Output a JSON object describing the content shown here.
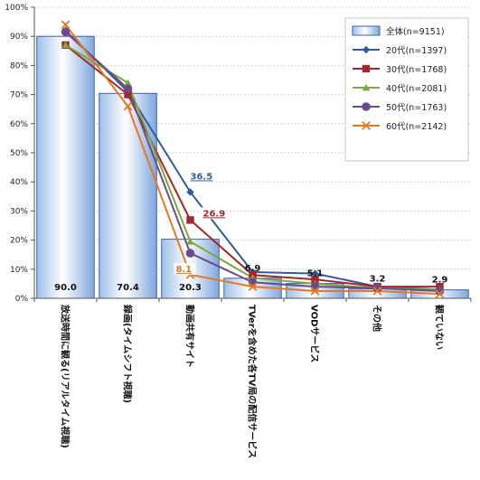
{
  "chart_data": {
    "type": "bar",
    "categories": [
      "放送時間に観る(リアルタイム視聴)",
      "録画(タイムシフト視聴)",
      "動画共有サイト",
      "TVerを含めた各TV局の配信サービス",
      "VODサービス",
      "その他",
      "観ていない"
    ],
    "y_ticks": [
      "0%",
      "10%",
      "20%",
      "30%",
      "40%",
      "50%",
      "60%",
      "70%",
      "80%",
      "90%",
      "100%"
    ],
    "ylim": [
      0,
      100
    ],
    "grid": true,
    "legend_position": "top-right",
    "bar_series": {
      "name": "全体(n=9151)",
      "values": [
        90.0,
        70.4,
        20.3,
        6.9,
        5.1,
        3.2,
        2.9
      ],
      "labels": [
        "90.0",
        "70.4",
        "20.3",
        "6.9",
        "5.1",
        "3.2",
        "2.9"
      ]
    },
    "series": [
      {
        "name": "20代(n=1397)",
        "color": "#2E5C9E",
        "marker": "diamond",
        "values": [
          92,
          71,
          36.5,
          9,
          8.5,
          4,
          3
        ]
      },
      {
        "name": "30代(n=1768)",
        "color": "#A3272D",
        "marker": "square",
        "values": [
          87,
          70,
          26.9,
          8,
          6.5,
          4,
          4
        ]
      },
      {
        "name": "40代(n=2081)",
        "color": "#7FA83A",
        "marker": "triangle",
        "values": [
          87,
          74,
          19.5,
          7,
          5,
          3.5,
          3
        ]
      },
      {
        "name": "50代(n=1763)",
        "color": "#6A4C8C",
        "marker": "circle",
        "values": [
          91.5,
          72,
          15.5,
          5.5,
          4,
          3.5,
          2.5
        ]
      },
      {
        "name": "60代(n=2142)",
        "color": "#E87722",
        "marker": "x",
        "values": [
          94,
          66,
          8.1,
          4,
          2.5,
          2.5,
          1.5
        ]
      }
    ],
    "point_labels": [
      {
        "series": "20代(n=1397)",
        "category": "動画共有サイト",
        "text": "36.5",
        "color": "#2E5C9E"
      },
      {
        "series": "30代(n=1768)",
        "category": "動画共有サイト",
        "text": "26.9",
        "color": "#A3272D"
      },
      {
        "series": "60代(n=2142)",
        "category": "動画共有サイト",
        "text": "8.1",
        "color": "#E87722"
      }
    ]
  }
}
